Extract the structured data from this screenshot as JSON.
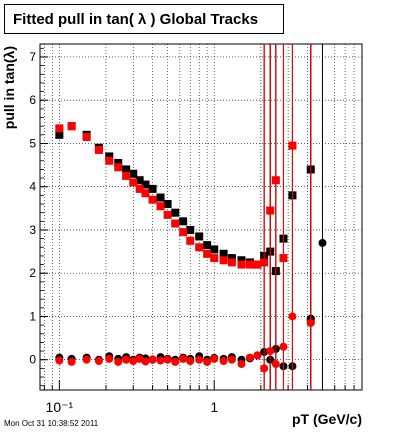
{
  "title": "Fitted pull in tan( λ )  Global Tracks",
  "timestamp": "Mon Oct 31 10:38:52 2011",
  "chart_data": {
    "type": "scatter",
    "title": "Fitted pull in tan( λ )  Global Tracks",
    "xlabel": "pT (GeV/c)",
    "ylabel": "pull in tan(λ)",
    "x_scale": "log",
    "xlim": [
      0.075,
      9.0
    ],
    "ylim": [
      -0.7,
      7.3
    ],
    "grid": true,
    "x_ticks": [
      {
        "value": 0.1,
        "label": "10⁻¹"
      },
      {
        "value": 1,
        "label": "1"
      }
    ],
    "y_ticks": [
      0,
      1,
      2,
      3,
      4,
      5,
      6,
      7
    ],
    "colors": {
      "black_series": "#000000",
      "red_series": "#ff0000"
    },
    "series": [
      {
        "marker": "square",
        "color": "#000000",
        "x": [
          0.1,
          0.12,
          0.15,
          0.18,
          0.21,
          0.24,
          0.27,
          0.3,
          0.33,
          0.36,
          0.4,
          0.45,
          0.5,
          0.56,
          0.63,
          0.7,
          0.8,
          0.9,
          1.0,
          1.15,
          1.3,
          1.5,
          1.7,
          1.9,
          2.1,
          2.3,
          2.5,
          2.8,
          3.2,
          4.2
        ],
        "y": [
          5.2,
          5.4,
          5.2,
          4.9,
          4.7,
          4.55,
          4.4,
          4.3,
          4.15,
          4.05,
          3.95,
          3.75,
          3.6,
          3.4,
          3.2,
          3.0,
          2.85,
          2.65,
          2.55,
          2.45,
          2.35,
          2.3,
          2.25,
          2.2,
          2.4,
          2.5,
          2.05,
          2.8,
          3.8,
          4.4
        ]
      },
      {
        "marker": "square",
        "color": "#ff0000",
        "x": [
          0.1,
          0.12,
          0.15,
          0.18,
          0.21,
          0.24,
          0.27,
          0.3,
          0.33,
          0.36,
          0.4,
          0.45,
          0.5,
          0.56,
          0.63,
          0.7,
          0.8,
          0.9,
          1.0,
          1.15,
          1.3,
          1.5,
          1.7,
          1.9,
          2.1,
          2.3,
          2.5,
          2.8,
          3.2,
          4.2
        ],
        "y": [
          5.35,
          5.4,
          5.15,
          4.85,
          4.6,
          4.45,
          4.25,
          4.1,
          3.95,
          3.85,
          3.7,
          3.55,
          3.35,
          3.15,
          2.95,
          2.75,
          2.6,
          2.45,
          2.35,
          2.3,
          2.25,
          2.2,
          2.2,
          2.2,
          2.25,
          3.45,
          4.15,
          2.35,
          4.95,
          0.9
        ]
      },
      {
        "marker": "circle",
        "color": "#000000",
        "x": [
          0.1,
          0.12,
          0.15,
          0.18,
          0.21,
          0.24,
          0.27,
          0.3,
          0.33,
          0.36,
          0.4,
          0.45,
          0.5,
          0.56,
          0.63,
          0.7,
          0.8,
          0.9,
          1.0,
          1.15,
          1.3,
          1.5,
          1.7,
          1.9,
          2.1,
          2.3,
          2.5,
          2.8,
          3.2,
          4.2,
          5.0
        ],
        "y": [
          0.05,
          0.02,
          0.05,
          0.0,
          0.08,
          0.02,
          0.06,
          0.0,
          0.05,
          0.03,
          0.0,
          0.06,
          0.02,
          0.0,
          0.05,
          0.02,
          0.08,
          0.0,
          0.04,
          0.02,
          0.06,
          0.0,
          0.03,
          0.1,
          0.18,
          0.0,
          0.25,
          -0.15,
          -0.15,
          0.95,
          2.7
        ]
      },
      {
        "marker": "circle",
        "color": "#ff0000",
        "x": [
          0.1,
          0.12,
          0.15,
          0.18,
          0.21,
          0.24,
          0.27,
          0.3,
          0.33,
          0.36,
          0.4,
          0.45,
          0.5,
          0.56,
          0.63,
          0.7,
          0.8,
          0.9,
          1.0,
          1.15,
          1.3,
          1.5,
          1.7,
          1.9,
          2.1,
          2.3,
          2.5,
          2.8,
          3.2,
          4.2
        ],
        "y": [
          -0.02,
          -0.05,
          0.0,
          -0.03,
          0.02,
          -0.05,
          0.0,
          -0.03,
          0.02,
          -0.04,
          0.01,
          -0.02,
          0.0,
          -0.05,
          0.02,
          -0.03,
          0.0,
          -0.05,
          0.02,
          -0.03,
          0.0,
          -0.1,
          0.05,
          0.1,
          -0.2,
          0.2,
          -0.1,
          0.3,
          1.0,
          0.85
        ]
      }
    ]
  }
}
